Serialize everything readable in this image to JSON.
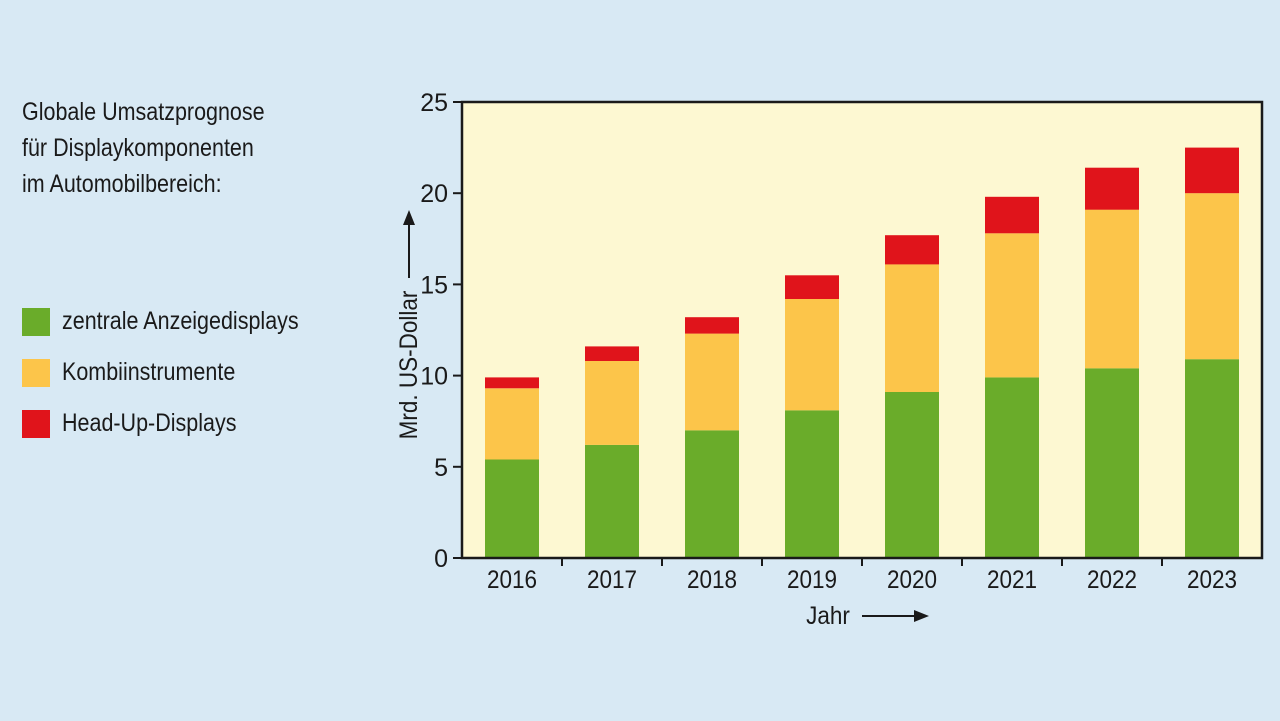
{
  "title_lines": [
    "Globale Umsatzprognose",
    "für Displaykomponenten",
    "im Automobilbereich:"
  ],
  "colors": {
    "background": "#d8e9f4",
    "plot_background": "#fdf8d2",
    "green": "#6aac2a",
    "orange": "#fcc54a",
    "red": "#e0141b",
    "axis": "#1a1a1a"
  },
  "chart_data": {
    "type": "bar",
    "stacked": true,
    "categories": [
      "2016",
      "2017",
      "2018",
      "2019",
      "2020",
      "2021",
      "2022",
      "2023"
    ],
    "series": [
      {
        "name": "zentrale Anzeigedisplays",
        "color": "#6aac2a",
        "values": [
          5.4,
          6.2,
          7.0,
          8.1,
          9.1,
          9.9,
          10.4,
          10.9
        ]
      },
      {
        "name": "Kombiinstrumente",
        "color": "#fcc54a",
        "values": [
          3.9,
          4.6,
          5.3,
          6.1,
          7.0,
          7.9,
          8.7,
          9.1
        ]
      },
      {
        "name": "Head-Up-Displays",
        "color": "#e0141b",
        "values": [
          0.6,
          0.8,
          0.9,
          1.3,
          1.6,
          2.0,
          2.3,
          2.5
        ]
      }
    ],
    "ylim": [
      0,
      25
    ],
    "yticks": [
      "0",
      "5",
      "10",
      "15",
      "20",
      "25"
    ],
    "ylabel": "Mrd. US-Dollar",
    "xlabel": "Jahr",
    "legend_position": "left"
  }
}
